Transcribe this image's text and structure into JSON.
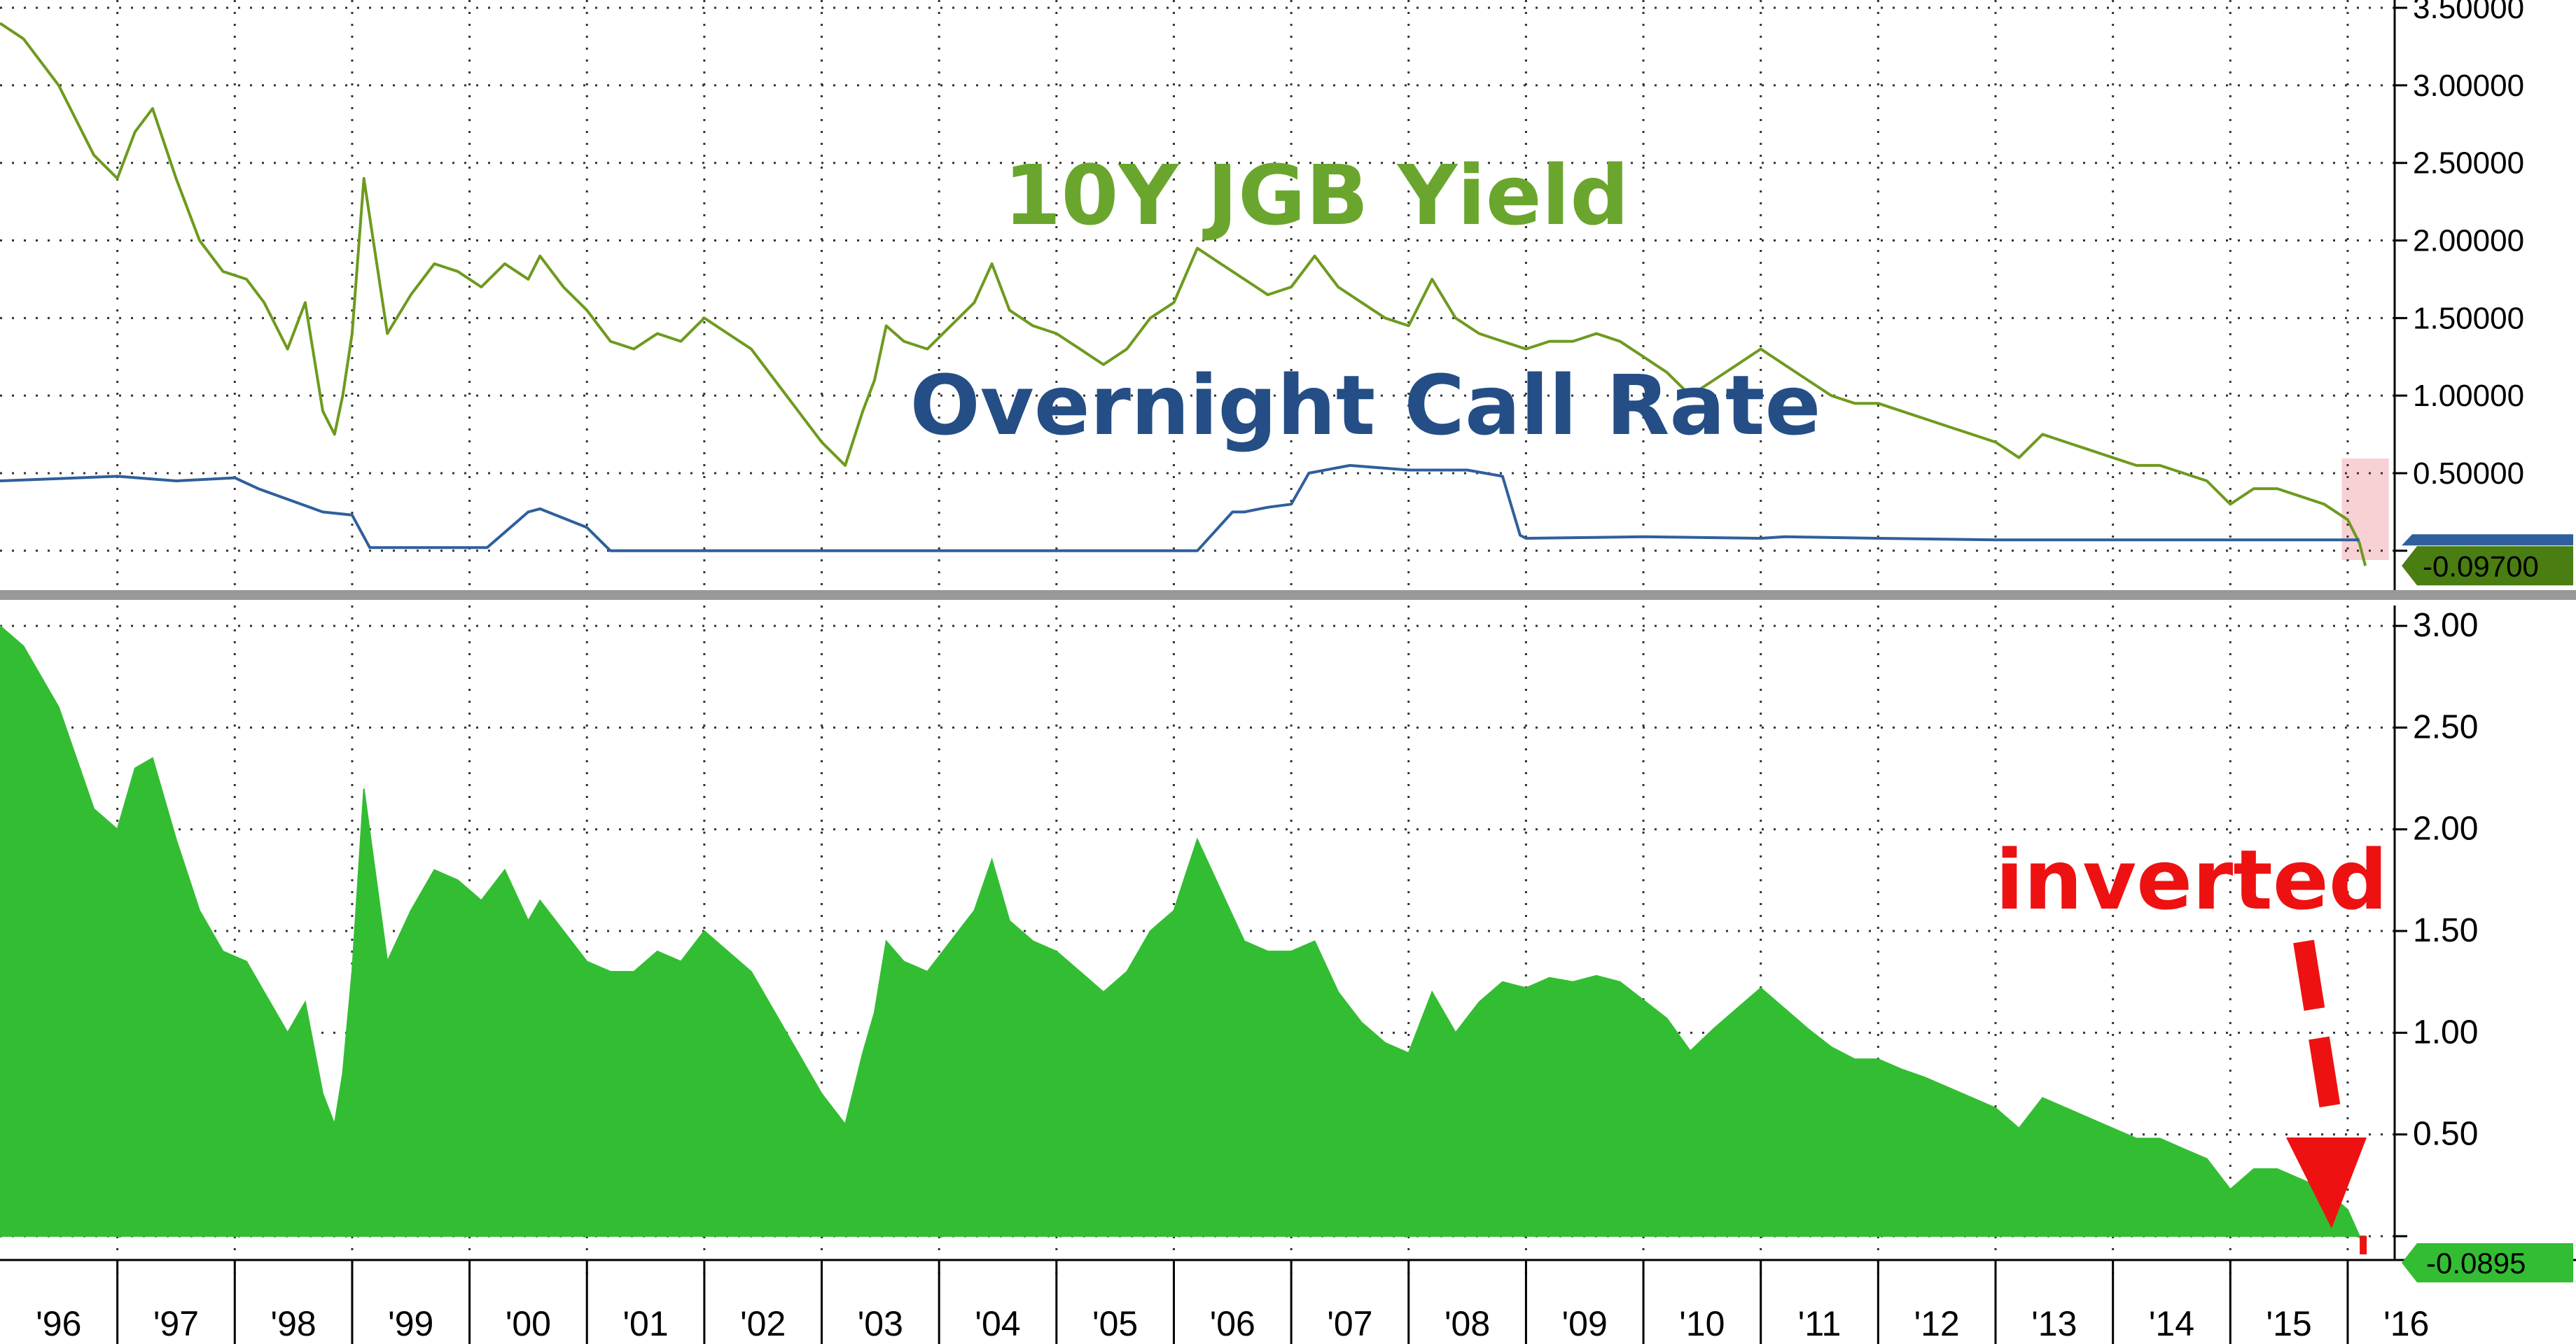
{
  "colors": {
    "jgb": "#6e9a1e",
    "call": "#2f5f9c",
    "spread_fill": "#33bd33",
    "jgb_title": "#6aa62e",
    "call_title": "#244e85",
    "annotation": "#ee1111",
    "highlight": "#f7c9cc",
    "divider": "#999999",
    "jgb_tag_bg": "#4a7d12",
    "spread_tag_bg": "#33bd33"
  },
  "x_axis": {
    "labels": [
      "'96",
      "'97",
      "'98",
      "'99",
      "'00",
      "'01",
      "'02",
      "'03",
      "'04",
      "'05",
      "'06",
      "'07",
      "'08",
      "'09",
      "'10",
      "'11",
      "'12",
      "'13",
      "'14",
      "'15",
      "'16"
    ],
    "start": 1996.0,
    "end": 2016.4
  },
  "chart_data": [
    {
      "type": "line",
      "title_series": [
        "10Y JGB Yield",
        "Overnight Call Rate"
      ],
      "yticks": [
        "3.50000",
        "3.00000",
        "2.50000",
        "2.00000",
        "1.50000",
        "1.00000",
        "0.50000"
      ],
      "ylim": [
        -0.15,
        3.55
      ],
      "grid": true,
      "last_value_label": "-0.09700",
      "series": [
        {
          "name": "10Y JGB Yield",
          "x": [
            1996.0,
            1996.2,
            1996.5,
            1996.8,
            1997.0,
            1997.15,
            1997.3,
            1997.5,
            1997.7,
            1997.9,
            1998.1,
            1998.25,
            1998.45,
            1998.6,
            1998.75,
            1998.85,
            1998.92,
            1999.0,
            1999.1,
            1999.3,
            1999.5,
            1999.7,
            1999.9,
            2000.1,
            2000.3,
            2000.5,
            2000.6,
            2000.8,
            2001.0,
            2001.2,
            2001.4,
            2001.6,
            2001.8,
            2002.0,
            2002.2,
            2002.4,
            2002.6,
            2002.8,
            2003.0,
            2003.2,
            2003.35,
            2003.45,
            2003.55,
            2003.7,
            2003.9,
            2004.1,
            2004.3,
            2004.45,
            2004.6,
            2004.8,
            2005.0,
            2005.2,
            2005.4,
            2005.6,
            2005.8,
            2006.0,
            2006.2,
            2006.4,
            2006.6,
            2006.8,
            2007.0,
            2007.2,
            2007.4,
            2007.6,
            2007.8,
            2008.0,
            2008.2,
            2008.4,
            2008.6,
            2008.8,
            2009.0,
            2009.2,
            2009.4,
            2009.6,
            2009.8,
            2010.0,
            2010.2,
            2010.4,
            2010.6,
            2010.8,
            2011.0,
            2011.2,
            2011.4,
            2011.6,
            2011.8,
            2012.0,
            2012.2,
            2012.4,
            2012.6,
            2012.8,
            2013.0,
            2013.2,
            2013.4,
            2013.6,
            2013.8,
            2014.0,
            2014.2,
            2014.4,
            2014.6,
            2014.8,
            2015.0,
            2015.2,
            2015.4,
            2015.6,
            2015.8,
            2016.0,
            2016.1,
            2016.15
          ],
          "values": [
            3.4,
            3.3,
            3.0,
            2.55,
            2.4,
            2.7,
            2.85,
            2.4,
            2.0,
            1.8,
            1.75,
            1.6,
            1.3,
            1.6,
            0.9,
            0.75,
            1.0,
            1.4,
            2.4,
            1.4,
            1.65,
            1.85,
            1.8,
            1.7,
            1.85,
            1.75,
            1.9,
            1.7,
            1.55,
            1.35,
            1.3,
            1.4,
            1.35,
            1.5,
            1.4,
            1.3,
            1.1,
            0.9,
            0.7,
            0.55,
            0.9,
            1.1,
            1.45,
            1.35,
            1.3,
            1.45,
            1.6,
            1.85,
            1.55,
            1.45,
            1.4,
            1.3,
            1.2,
            1.3,
            1.5,
            1.6,
            1.95,
            1.85,
            1.75,
            1.65,
            1.7,
            1.9,
            1.7,
            1.6,
            1.5,
            1.45,
            1.75,
            1.5,
            1.4,
            1.35,
            1.3,
            1.35,
            1.35,
            1.4,
            1.35,
            1.25,
            1.15,
            1.0,
            1.1,
            1.2,
            1.3,
            1.2,
            1.1,
            1.0,
            0.95,
            0.95,
            0.9,
            0.85,
            0.8,
            0.75,
            0.7,
            0.6,
            0.75,
            0.7,
            0.65,
            0.6,
            0.55,
            0.55,
            0.5,
            0.45,
            0.3,
            0.4,
            0.4,
            0.35,
            0.3,
            0.2,
            0.05,
            -0.097
          ]
        },
        {
          "name": "Overnight Call Rate",
          "x": [
            1996.0,
            1997.0,
            1997.5,
            1998.0,
            1998.2,
            1998.75,
            1999.0,
            1999.15,
            2000.0,
            2000.15,
            2000.5,
            2000.6,
            2001.0,
            2001.2,
            2003.5,
            2005.0,
            2006.0,
            2006.2,
            2006.5,
            2006.6,
            2006.8,
            2007.0,
            2007.15,
            2007.5,
            2008.0,
            2008.5,
            2008.8,
            2008.95,
            2009.0,
            2010.0,
            2011.0,
            2011.2,
            2012.0,
            2013.0,
            2014.0,
            2015.0,
            2016.0,
            2016.1
          ],
          "values": [
            0.45,
            0.48,
            0.45,
            0.47,
            0.4,
            0.25,
            0.23,
            0.02,
            0.02,
            0.02,
            0.25,
            0.27,
            0.15,
            0.0,
            0.0,
            0.0,
            0.0,
            0.0,
            0.25,
            0.25,
            0.28,
            0.3,
            0.5,
            0.55,
            0.52,
            0.52,
            0.48,
            0.1,
            0.08,
            0.09,
            0.08,
            0.09,
            0.08,
            0.07,
            0.07,
            0.07,
            0.07,
            0.07
          ]
        }
      ]
    },
    {
      "type": "area",
      "series": [
        {
          "name": "",
          "x": [
            1996.0,
            1996.2,
            1996.5,
            1996.8,
            1997.0,
            1997.15,
            1997.3,
            1997.5,
            1997.7,
            1997.9,
            1998.1,
            1998.25,
            1998.45,
            1998.6,
            1998.75,
            1998.85,
            1998.92,
            1999.0,
            1999.1,
            1999.3,
            1999.5,
            1999.7,
            1999.9,
            2000.1,
            2000.3,
            2000.5,
            2000.6,
            2000.8,
            2001.0,
            2001.2,
            2001.4,
            2001.6,
            2001.8,
            2002.0,
            2002.2,
            2002.4,
            2002.6,
            2002.8,
            2003.0,
            2003.2,
            2003.35,
            2003.45,
            2003.55,
            2003.7,
            2003.9,
            2004.1,
            2004.3,
            2004.45,
            2004.6,
            2004.8,
            2005.0,
            2005.2,
            2005.4,
            2005.6,
            2005.8,
            2006.0,
            2006.2,
            2006.4,
            2006.6,
            2006.8,
            2007.0,
            2007.2,
            2007.4,
            2007.6,
            2007.8,
            2008.0,
            2008.2,
            2008.4,
            2008.6,
            2008.8,
            2009.0,
            2009.2,
            2009.4,
            2009.6,
            2009.8,
            2010.0,
            2010.2,
            2010.4,
            2010.6,
            2010.8,
            2011.0,
            2011.2,
            2011.4,
            2011.6,
            2011.8,
            2012.0,
            2012.2,
            2012.4,
            2012.6,
            2012.8,
            2013.0,
            2013.2,
            2013.4,
            2013.6,
            2013.8,
            2014.0,
            2014.2,
            2014.4,
            2014.6,
            2014.8,
            2015.0,
            2015.2,
            2015.4,
            2015.6,
            2015.8,
            2016.0,
            2016.1,
            2016.15
          ],
          "values": [
            3.0,
            2.9,
            2.6,
            2.1,
            2.0,
            2.3,
            2.35,
            1.95,
            1.6,
            1.4,
            1.35,
            1.2,
            1.0,
            1.15,
            0.7,
            0.55,
            0.8,
            1.3,
            2.2,
            1.35,
            1.6,
            1.8,
            1.75,
            1.65,
            1.8,
            1.55,
            1.65,
            1.5,
            1.35,
            1.3,
            1.3,
            1.4,
            1.35,
            1.5,
            1.4,
            1.3,
            1.1,
            0.9,
            0.7,
            0.55,
            0.9,
            1.1,
            1.45,
            1.35,
            1.3,
            1.45,
            1.6,
            1.85,
            1.55,
            1.45,
            1.4,
            1.3,
            1.2,
            1.3,
            1.5,
            1.6,
            1.95,
            1.7,
            1.45,
            1.4,
            1.4,
            1.45,
            1.2,
            1.05,
            0.95,
            0.9,
            1.2,
            1.0,
            1.15,
            1.25,
            1.22,
            1.27,
            1.25,
            1.28,
            1.25,
            1.16,
            1.07,
            0.91,
            1.02,
            1.12,
            1.22,
            1.12,
            1.02,
            0.93,
            0.87,
            0.87,
            0.82,
            0.78,
            0.73,
            0.68,
            0.63,
            0.53,
            0.68,
            0.63,
            0.58,
            0.53,
            0.48,
            0.48,
            0.43,
            0.38,
            0.23,
            0.33,
            0.33,
            0.28,
            0.23,
            0.13,
            0.0,
            -0.0895
          ]
        }
      ],
      "yticks": [
        "3.00",
        "2.50",
        "2.00",
        "1.50",
        "1.00",
        "0.50"
      ],
      "ylim": [
        -0.1,
        3.1
      ],
      "grid": true,
      "last_value_label": "-0.0895"
    }
  ],
  "annotations": {
    "jgb_title": "10Y JGB Yield",
    "call_title": "Overnight Call Rate",
    "inverted": "inverted"
  }
}
